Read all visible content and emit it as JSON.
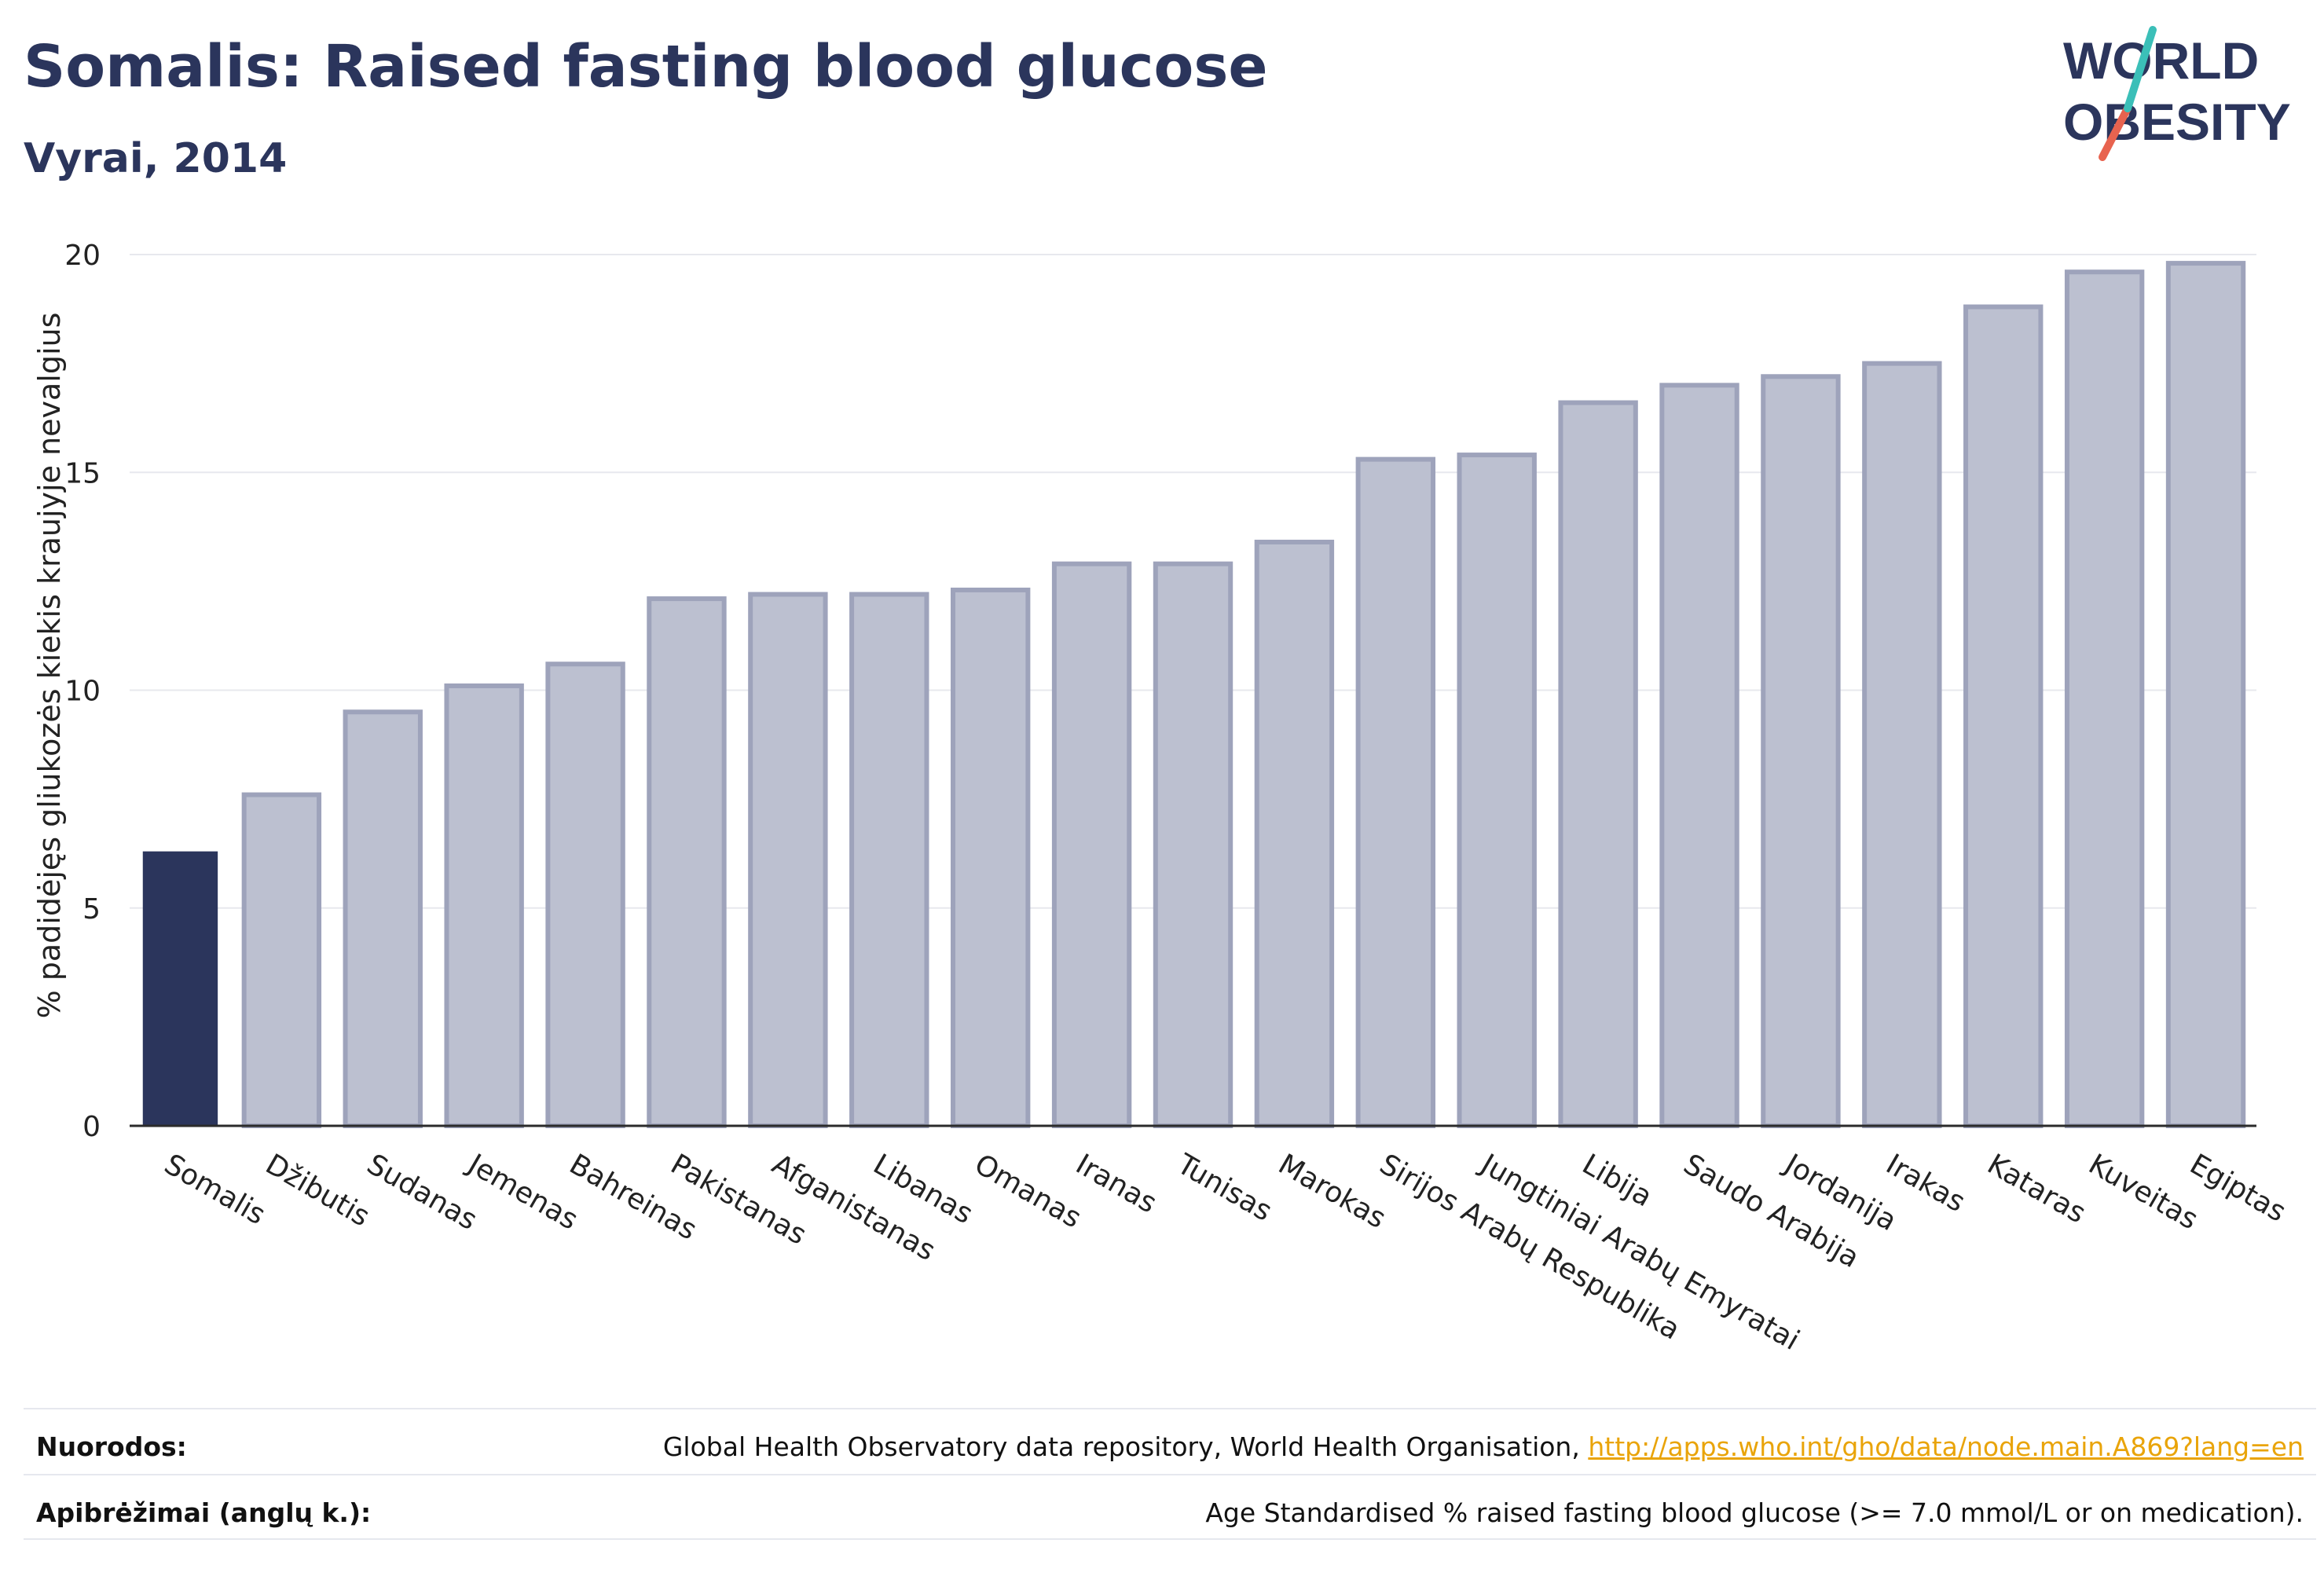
{
  "header": {
    "title": "Somalis: Raised fasting blood glucose",
    "subtitle": "Vyrai, 2014"
  },
  "logo": {
    "line1": "WORLD",
    "line2": "OBESITY",
    "accent_color": "#e8634f",
    "accent_color2": "#3bbfb8"
  },
  "colors": {
    "highlight": "#2b355c",
    "bar": "#bcc0d0",
    "bar_border": "#9ea3bb",
    "axis": "#2b2b2b",
    "grid": "#e7e8ee"
  },
  "chart_data": {
    "type": "bar",
    "title": "Somalis: Raised fasting blood glucose",
    "subtitle": "Vyrai, 2014",
    "ylabel": "% padidėjęs gliukozės kiekis kraujyje nevalgius",
    "xlabel": "",
    "ylim": [
      0,
      20
    ],
    "yticks": [
      0,
      5,
      10,
      15,
      20
    ],
    "grid": true,
    "highlight": "Somalis",
    "categories": [
      "Somalis",
      "Džibutis",
      "Sudanas",
      "Jemenas",
      "Bahreinas",
      "Pakistanas",
      "Afganistanas",
      "Libanas",
      "Omanas",
      "Iranas",
      "Tunisas",
      "Marokas",
      "Sirijos Arabų Respublika",
      "Jungtiniai Arabų Emyratai",
      "Libija",
      "Saudo Arabija",
      "Jordanija",
      "Irakas",
      "Kataras",
      "Kuveitas",
      "Egiptas"
    ],
    "values": [
      6.3,
      7.6,
      9.5,
      10.1,
      10.6,
      12.1,
      12.2,
      12.2,
      12.3,
      12.9,
      12.9,
      13.4,
      15.3,
      15.4,
      16.6,
      17.0,
      17.2,
      17.5,
      18.8,
      19.6,
      19.8
    ]
  },
  "footer": {
    "sources_label": "Nuorodos:",
    "sources_text": "Global Health Observatory data repository, World Health Organisation,",
    "sources_link": "http://apps.who.int/gho/data/node.main.A869?lang=en",
    "definitions_label": "Apibrėžimai (anglų k.):",
    "definitions_text": "Age Standardised % raised fasting blood glucose (>= 7.0 mmol/L or on medication)."
  }
}
